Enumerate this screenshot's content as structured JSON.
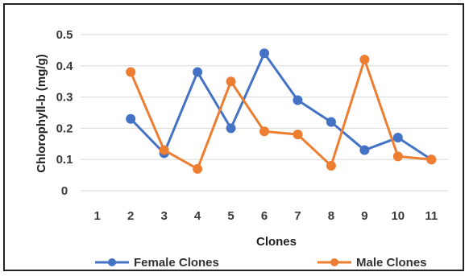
{
  "chart_data": {
    "type": "line",
    "title": "",
    "xlabel": "Clones",
    "ylabel": "Chlorophyll-b  (mg/g)",
    "categories": [
      "1",
      "2",
      "3",
      "4",
      "5",
      "6",
      "7",
      "8",
      "9",
      "10",
      "11"
    ],
    "ylim": [
      0,
      0.5
    ],
    "yticks": [
      "0",
      "0.1",
      "0.2",
      "0.3",
      "0.4",
      "0.5"
    ],
    "grid": true,
    "legend_position": "bottom",
    "series": [
      {
        "name": "Female Clones",
        "color": "#4472C4",
        "values": [
          null,
          0.23,
          0.12,
          0.38,
          0.2,
          0.44,
          0.29,
          0.22,
          0.13,
          0.17,
          0.1
        ]
      },
      {
        "name": "Male Clones",
        "color": "#ED7D31",
        "values": [
          null,
          0.38,
          0.13,
          0.07,
          0.35,
          0.19,
          0.18,
          0.08,
          0.42,
          0.11,
          0.1
        ]
      }
    ]
  }
}
